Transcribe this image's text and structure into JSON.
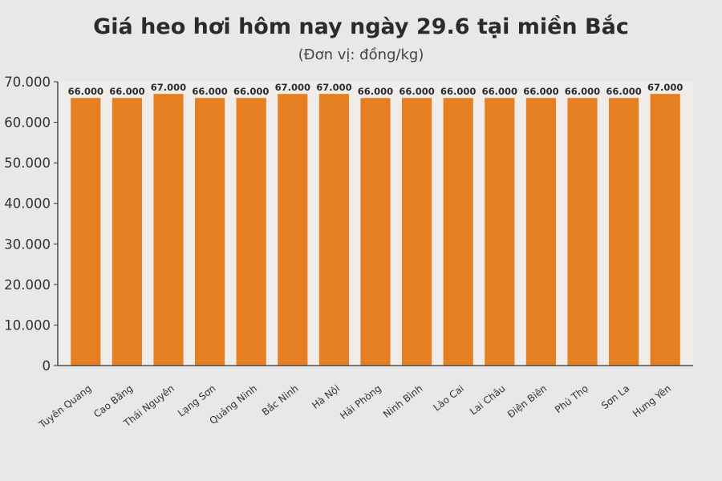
{
  "colors": {
    "background": "#e8e8e8",
    "bar": "#e67e22",
    "plot_background": "#f0ece9",
    "axis": "#333333",
    "text": "#2b2b2b"
  },
  "chart_data": {
    "type": "bar",
    "title": "Giá heo hơi hôm nay ngày 29.6 tại miền Bắc",
    "subtitle": "(Đơn vị: đồng/kg)",
    "xlabel": "",
    "ylabel": "",
    "categories": [
      "Tuyên Quang",
      "Cao Bằng",
      "Thái Nguyên",
      "Lạng Sơn",
      "Quảng Ninh",
      "Bắc Ninh",
      "Hà Nội",
      "Hải Phòng",
      "Ninh Bình",
      "Lào Cai",
      "Lai Châu",
      "Điện Biên",
      "Phú Thọ",
      "Sơn La",
      "Hưng Yên"
    ],
    "values": [
      66000,
      66000,
      67000,
      66000,
      66000,
      67000,
      67000,
      66000,
      66000,
      66000,
      66000,
      66000,
      66000,
      66000,
      67000
    ],
    "value_labels": [
      "66.000",
      "66.000",
      "67.000",
      "66.000",
      "66.000",
      "67.000",
      "67.000",
      "66.000",
      "66.000",
      "66.000",
      "66.000",
      "66.000",
      "66.000",
      "66.000",
      "67.000"
    ],
    "ylim": [
      0,
      70000
    ],
    "yticks": [
      0,
      10000,
      20000,
      30000,
      40000,
      50000,
      60000,
      70000
    ],
    "ytick_labels": [
      "0",
      "10.000",
      "20.000",
      "30.000",
      "40.000",
      "50.000",
      "60.000",
      "70.000"
    ],
    "grid": false,
    "legend": "none"
  }
}
